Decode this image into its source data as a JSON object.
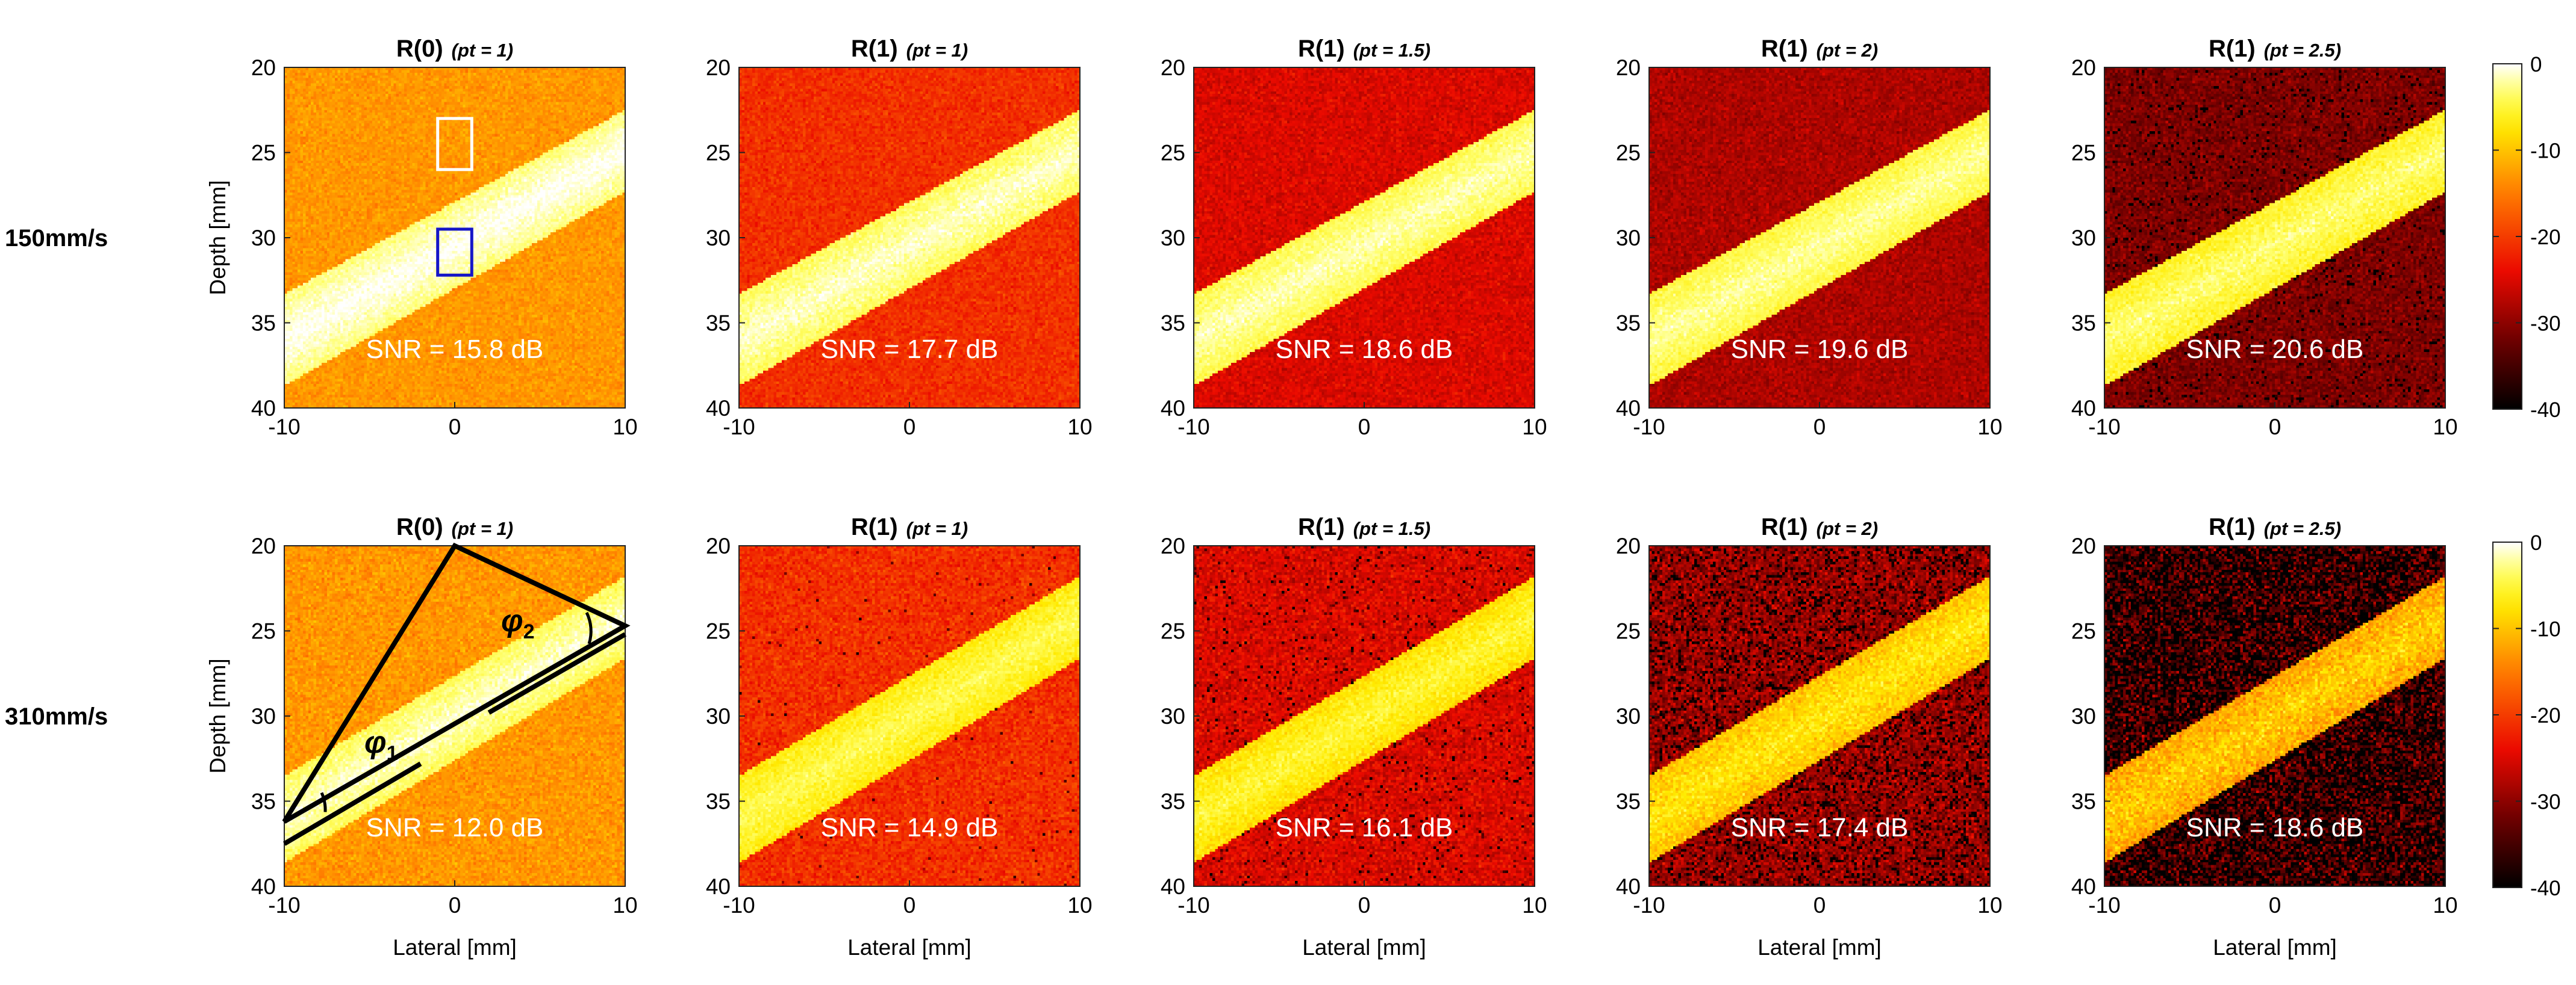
{
  "figure": {
    "colorbar": {
      "ticks": [
        "0",
        "-10",
        "-20",
        "-30",
        "-40"
      ],
      "range_db": [
        -40,
        0
      ]
    },
    "axes": {
      "xlabel": "Lateral [mm]",
      "ylabel": "Depth [mm]",
      "x_ticks": [
        "-10",
        "0",
        "10"
      ],
      "y_ticks": [
        "20",
        "25",
        "30",
        "35",
        "40"
      ],
      "xlim": [
        -10,
        10
      ],
      "ylim": [
        20,
        40
      ]
    },
    "geometry_labels": {
      "phi1": "φ",
      "phi1_sub": "1",
      "phi2": "φ",
      "phi2_sub": "2"
    }
  },
  "chart_data": [
    {
      "type": "heatmap",
      "row": 0,
      "col": 0,
      "row_label": "150mm/s",
      "title_main": "R(0)",
      "title_param": "(pt = 1)",
      "snr_label": "SNR = 15.8 dB",
      "snr_db": 15.8,
      "background_db": -13,
      "channel_db": -3,
      "noise_db": 1.5,
      "speckle_density": 0,
      "vessel": {
        "left_top_depth": 33.3,
        "left_bottom_depth": 38.7,
        "right_top_depth": 22.5,
        "right_bottom_depth": 27.3
      },
      "roi": [
        {
          "color": "#ffffff",
          "lateral": [
            -1,
            1
          ],
          "depth": [
            23,
            26
          ]
        },
        {
          "color": "#1515c8",
          "lateral": [
            -1,
            1
          ],
          "depth": [
            29.5,
            32.2
          ]
        }
      ]
    },
    {
      "type": "heatmap",
      "row": 0,
      "col": 1,
      "title_main": "R(1)",
      "title_param": "(pt = 1)",
      "snr_label": "SNR = 17.7 dB",
      "snr_db": 17.7,
      "background_db": -21,
      "channel_db": -4,
      "noise_db": 1.8,
      "speckle_density": 0,
      "vessel": {
        "left_top_depth": 33.3,
        "left_bottom_depth": 38.7,
        "right_top_depth": 22.5,
        "right_bottom_depth": 27.3
      }
    },
    {
      "type": "heatmap",
      "row": 0,
      "col": 2,
      "title_main": "R(1)",
      "title_param": "(pt = 1.5)",
      "snr_label": "SNR = 18.6 dB",
      "snr_db": 18.6,
      "background_db": -25,
      "channel_db": -4.5,
      "noise_db": 1.8,
      "speckle_density": 0,
      "vessel": {
        "left_top_depth": 33.3,
        "left_bottom_depth": 38.7,
        "right_top_depth": 22.5,
        "right_bottom_depth": 27.3
      }
    },
    {
      "type": "heatmap",
      "row": 0,
      "col": 3,
      "title_main": "R(1)",
      "title_param": "(pt = 2)",
      "snr_label": "SNR = 19.6 dB",
      "snr_db": 19.6,
      "background_db": -28,
      "channel_db": -5,
      "noise_db": 1.8,
      "speckle_density": 0,
      "vessel": {
        "left_top_depth": 33.3,
        "left_bottom_depth": 38.7,
        "right_top_depth": 22.5,
        "right_bottom_depth": 27.3
      }
    },
    {
      "type": "heatmap",
      "row": 0,
      "col": 4,
      "title_main": "R(1)",
      "title_param": "(pt = 2.5)",
      "snr_label": "SNR = 20.6 dB",
      "snr_db": 20.6,
      "background_db": -31,
      "channel_db": -6,
      "noise_db": 2.2,
      "speckle_density": 0.05,
      "vessel": {
        "left_top_depth": 33.3,
        "left_bottom_depth": 38.7,
        "right_top_depth": 22.5,
        "right_bottom_depth": 27.3
      }
    },
    {
      "type": "heatmap",
      "row": 1,
      "col": 0,
      "row_label": "310mm/s",
      "title_main": "R(0)",
      "title_param": "(pt = 1)",
      "snr_label": "SNR = 12.0 dB",
      "snr_db": 12.0,
      "background_db": -13,
      "channel_db": -4,
      "noise_db": 1.8,
      "speckle_density": 0,
      "vessel": {
        "left_top_depth": 33.5,
        "left_bottom_depth": 38.6,
        "right_top_depth": 21.8,
        "right_bottom_depth": 26.6
      },
      "annotation": {
        "apex": [
          0,
          20
        ],
        "left": [
          -10,
          36.2
        ],
        "right": [
          10,
          24.7
        ],
        "mid_line_1": [
          -10,
          37.5,
          -2,
          32.8
        ],
        "mid_line_2": [
          2,
          29.8,
          10,
          25.2
        ]
      }
    },
    {
      "type": "heatmap",
      "row": 1,
      "col": 1,
      "title_main": "R(1)",
      "title_param": "(pt = 1)",
      "snr_label": "SNR = 14.9 dB",
      "snr_db": 14.9,
      "background_db": -21,
      "channel_db": -7,
      "noise_db": 2.2,
      "speckle_density": 0.01,
      "vessel": {
        "left_top_depth": 33.5,
        "left_bottom_depth": 38.6,
        "right_top_depth": 21.8,
        "right_bottom_depth": 26.6
      }
    },
    {
      "type": "heatmap",
      "row": 1,
      "col": 2,
      "title_main": "R(1)",
      "title_param": "(pt = 1.5)",
      "snr_label": "SNR = 16.1 dB",
      "snr_db": 16.1,
      "background_db": -25,
      "channel_db": -8,
      "noise_db": 2.5,
      "speckle_density": 0.04,
      "vessel": {
        "left_top_depth": 33.5,
        "left_bottom_depth": 38.6,
        "right_top_depth": 21.8,
        "right_bottom_depth": 26.6
      }
    },
    {
      "type": "heatmap",
      "row": 1,
      "col": 3,
      "title_main": "R(1)",
      "title_param": "(pt = 2)",
      "snr_label": "SNR = 17.4 dB",
      "snr_db": 17.4,
      "background_db": -29,
      "channel_db": -10,
      "noise_db": 3.5,
      "speckle_density": 0.2,
      "vessel": {
        "left_top_depth": 33.5,
        "left_bottom_depth": 38.6,
        "right_top_depth": 21.8,
        "right_bottom_depth": 26.6
      }
    },
    {
      "type": "heatmap",
      "row": 1,
      "col": 4,
      "title_main": "R(1)",
      "title_param": "(pt = 2.5)",
      "snr_label": "SNR = 18.6 dB",
      "snr_db": 18.6,
      "background_db": -33,
      "channel_db": -12,
      "noise_db": 4.5,
      "speckle_density": 0.45,
      "vessel": {
        "left_top_depth": 33.5,
        "left_bottom_depth": 38.6,
        "right_top_depth": 21.8,
        "right_bottom_depth": 26.6
      }
    }
  ]
}
